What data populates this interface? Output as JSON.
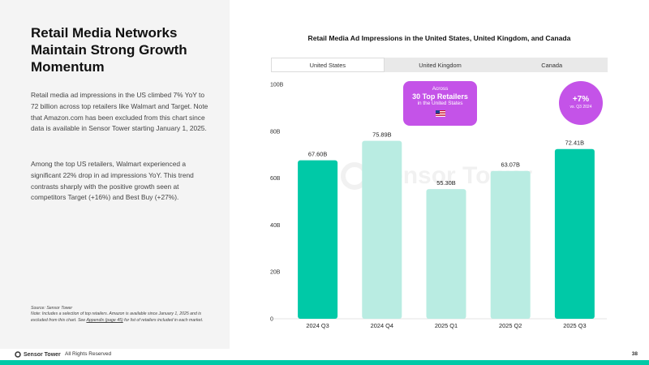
{
  "headline": "Retail Media Networks Maintain Strong Growth Momentum",
  "paragraphs": [
    "Retail media ad impressions in the US climbed 7% YoY to 72 billion across top retailers like Walmart and Target. Note that Amazon.com has been excluded from this chart since data is available in Sensor Tower starting January 1, 2025.",
    "Among the top US retailers, Walmart experienced a significant 22% drop in ad impressions YoY. This trend contrasts sharply with the positive growth seen at competitors Target (+16%) and Best Buy (+27%)."
  ],
  "source": {
    "label": "Source: Sensor Tower",
    "note_before_link": "Note: Includes a selection of top retailers. Amazon is available since January 1, 2025 and is excluded from this chart. See ",
    "link": "Appendix (page 45)",
    "note_after_link": " for list of retailers included in each market."
  },
  "footer": {
    "logo_text": "Sensor Tower",
    "rights": "All Rights Reserved",
    "page_number": "38"
  },
  "tabs": [
    {
      "label": "United States",
      "active": true
    },
    {
      "label": "United Kingdom",
      "active": false
    },
    {
      "label": "Canada",
      "active": false
    }
  ],
  "callout": {
    "line1": "Across",
    "line2": "30 Top Retailers",
    "line3": "in the United States"
  },
  "growth_badge": {
    "value": "+7%",
    "label": "vs. Q3 2024"
  },
  "watermark_text": "Sensor Tower",
  "colors": {
    "dark_bar": "#00c9a7",
    "light_bar": "#b9ece2",
    "accent": "#c453e8"
  },
  "chart_data": {
    "type": "bar",
    "title": "Retail Media Ad Impressions in the United States, United Kingdom, and Canada",
    "categories": [
      "2024 Q3",
      "2024 Q4",
      "2025 Q1",
      "2025 Q2",
      "2025 Q3"
    ],
    "values": [
      67.6,
      75.89,
      55.3,
      63.07,
      72.41
    ],
    "value_labels": [
      "67.60B",
      "75.89B",
      "55.30B",
      "63.07B",
      "72.41B"
    ],
    "highlighted": [
      true,
      false,
      false,
      false,
      true
    ],
    "y_ticks": [
      0,
      20,
      40,
      60,
      80,
      100
    ],
    "y_tick_labels": [
      "0",
      "20B",
      "40B",
      "60B",
      "80B",
      "100B"
    ],
    "ylim": [
      0,
      100
    ],
    "xlabel": "",
    "ylabel": "",
    "grid": false
  }
}
